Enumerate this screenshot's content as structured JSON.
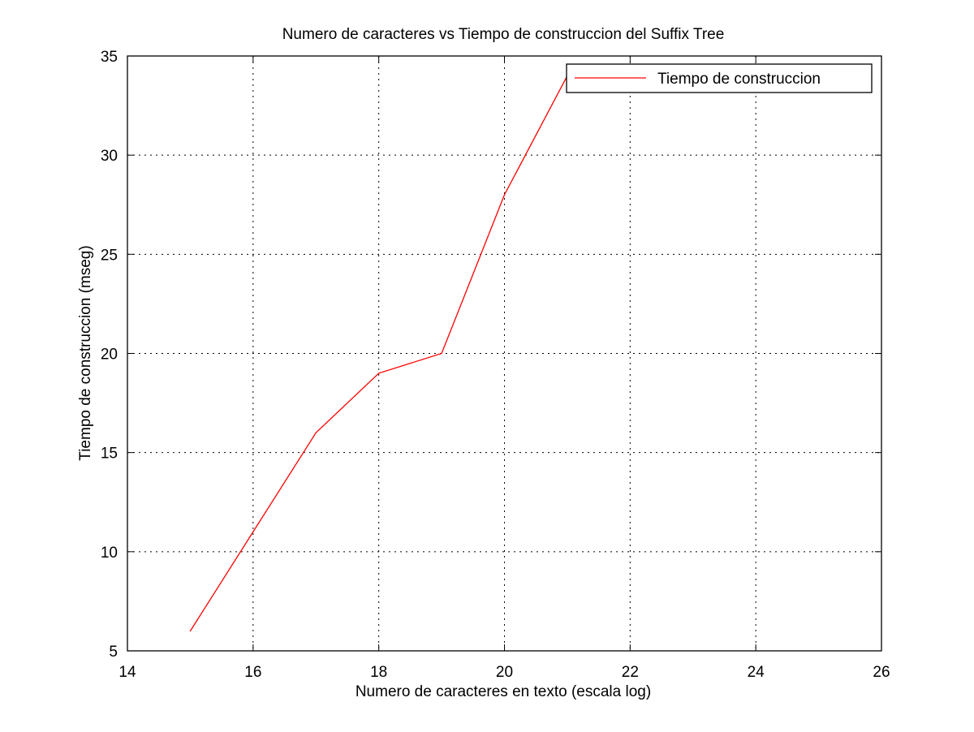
{
  "chart_data": {
    "type": "line",
    "title": "Numero de caracteres vs Tiempo de construccion del Suffix Tree",
    "xlabel": "Numero de caracteres en texto (escala log)",
    "ylabel": "Tiempo de construccion (mseg)",
    "xlim": [
      14,
      26
    ],
    "ylim": [
      5,
      35
    ],
    "xticks": [
      14,
      16,
      18,
      20,
      22,
      24,
      26
    ],
    "yticks": [
      5,
      10,
      15,
      20,
      25,
      30,
      35
    ],
    "grid": true,
    "legend_position": "top-right",
    "series": [
      {
        "name": "Tiempo de construccion",
        "color": "#ff0000",
        "x": [
          15,
          16,
          17,
          18,
          19,
          20,
          21,
          22,
          23,
          24,
          25
        ],
        "y": [
          6,
          11,
          16,
          19,
          20,
          28,
          34,
          34,
          34,
          34,
          34
        ]
      }
    ]
  }
}
